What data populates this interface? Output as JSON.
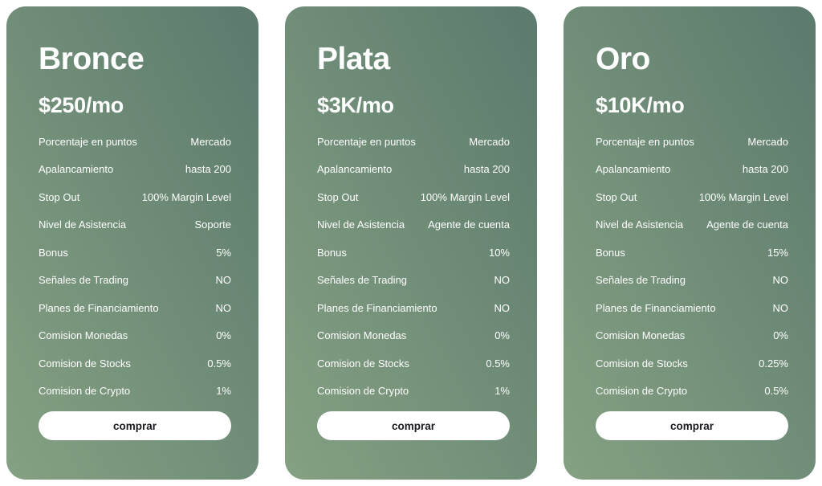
{
  "theme": {
    "card_gradient_start": "#85a183",
    "card_gradient_end": "#5c7a6d",
    "text_color": "#ffffff",
    "button_bg": "#ffffff",
    "button_text_color": "#1b1b1f"
  },
  "plans": [
    {
      "name": "Bronce",
      "price": "$250/mo",
      "features": [
        {
          "label": "Porcentaje en puntos",
          "value": "Mercado"
        },
        {
          "label": "Apalancamiento",
          "value": "hasta 200"
        },
        {
          "label": "Stop Out",
          "value": "100% Margin Level"
        },
        {
          "label": "Nivel de Asistencia",
          "value": "Soporte"
        },
        {
          "label": "Bonus",
          "value": "5%"
        },
        {
          "label": "Señales de Trading",
          "value": "NO"
        },
        {
          "label": "Planes de Financiamiento",
          "value": "NO"
        },
        {
          "label": "Comision Monedas",
          "value": "0%"
        },
        {
          "label": "Comision de Stocks",
          "value": "0.5%"
        },
        {
          "label": "Comision de Crypto",
          "value": "1%"
        }
      ],
      "cta_label": "comprar"
    },
    {
      "name": "Plata",
      "price": "$3K/mo",
      "features": [
        {
          "label": "Porcentaje en puntos",
          "value": "Mercado"
        },
        {
          "label": "Apalancamiento",
          "value": "hasta 200"
        },
        {
          "label": "Stop Out",
          "value": "100% Margin Level"
        },
        {
          "label": "Nivel de Asistencia",
          "value": "Agente de cuenta"
        },
        {
          "label": "Bonus",
          "value": "10%"
        },
        {
          "label": "Señales de Trading",
          "value": "NO"
        },
        {
          "label": "Planes de Financiamiento",
          "value": "NO"
        },
        {
          "label": "Comision Monedas",
          "value": "0%"
        },
        {
          "label": "Comision de Stocks",
          "value": "0.5%"
        },
        {
          "label": "Comision de Crypto",
          "value": "1%"
        }
      ],
      "cta_label": "comprar"
    },
    {
      "name": "Oro",
      "price": "$10K/mo",
      "features": [
        {
          "label": "Porcentaje en puntos",
          "value": "Mercado"
        },
        {
          "label": "Apalancamiento",
          "value": "hasta 200"
        },
        {
          "label": "Stop Out",
          "value": "100% Margin Level"
        },
        {
          "label": "Nivel de Asistencia",
          "value": "Agente de cuenta"
        },
        {
          "label": "Bonus",
          "value": "15%"
        },
        {
          "label": "Señales de Trading",
          "value": "NO"
        },
        {
          "label": "Planes de Financiamiento",
          "value": "NO"
        },
        {
          "label": "Comision Monedas",
          "value": "0%"
        },
        {
          "label": "Comision de Stocks",
          "value": "0.25%"
        },
        {
          "label": "Comision de Crypto",
          "value": "0.5%"
        }
      ],
      "cta_label": "comprar"
    }
  ]
}
